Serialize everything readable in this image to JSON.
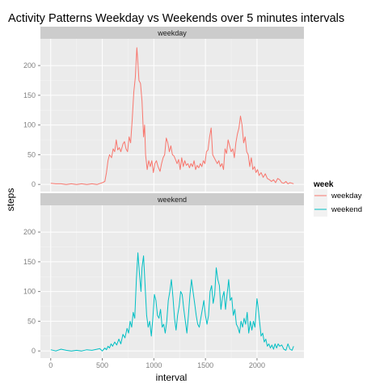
{
  "chart_data": {
    "type": "line",
    "title": "Activity Patterns Weekday vs Weekends over 5 minutes intervals",
    "xlabel": "interval",
    "ylabel": "steps",
    "xlim": [
      -100,
      2455
    ],
    "ylim": [
      -12,
      245
    ],
    "x_ticks": [
      0,
      500,
      1000,
      1500,
      2000
    ],
    "y_ticks": [
      0,
      50,
      100,
      150,
      200
    ],
    "grid": true,
    "legend": {
      "title": "week",
      "position": "right",
      "entries": [
        {
          "label": "weekday",
          "color": "#F8766D"
        },
        {
          "label": "weekend",
          "color": "#00BFC4"
        }
      ]
    },
    "panels": [
      {
        "label": "weekday",
        "color": "#F8766D",
        "points": [
          [
            0,
            2
          ],
          [
            50,
            1
          ],
          [
            100,
            1
          ],
          [
            150,
            0
          ],
          [
            200,
            1
          ],
          [
            250,
            0
          ],
          [
            300,
            1
          ],
          [
            350,
            0
          ],
          [
            400,
            1
          ],
          [
            450,
            0
          ],
          [
            500,
            3
          ],
          [
            525,
            5
          ],
          [
            540,
            20
          ],
          [
            555,
            40
          ],
          [
            570,
            50
          ],
          [
            590,
            45
          ],
          [
            605,
            60
          ],
          [
            620,
            55
          ],
          [
            635,
            75
          ],
          [
            650,
            58
          ],
          [
            665,
            62
          ],
          [
            680,
            55
          ],
          [
            700,
            68
          ],
          [
            715,
            72
          ],
          [
            730,
            60
          ],
          [
            745,
            55
          ],
          [
            760,
            80
          ],
          [
            775,
            70
          ],
          [
            790,
            110
          ],
          [
            805,
            155
          ],
          [
            820,
            180
          ],
          [
            835,
            230
          ],
          [
            845,
            205
          ],
          [
            855,
            175
          ],
          [
            870,
            170
          ],
          [
            885,
            140
          ],
          [
            900,
            80
          ],
          [
            910,
            100
          ],
          [
            920,
            50
          ],
          [
            935,
            25
          ],
          [
            950,
            40
          ],
          [
            965,
            30
          ],
          [
            980,
            40
          ],
          [
            995,
            20
          ],
          [
            1010,
            35
          ],
          [
            1025,
            40
          ],
          [
            1040,
            30
          ],
          [
            1060,
            22
          ],
          [
            1075,
            35
          ],
          [
            1090,
            45
          ],
          [
            1105,
            50
          ],
          [
            1120,
            78
          ],
          [
            1135,
            70
          ],
          [
            1150,
            55
          ],
          [
            1165,
            65
          ],
          [
            1180,
            50
          ],
          [
            1195,
            48
          ],
          [
            1210,
            42
          ],
          [
            1225,
            35
          ],
          [
            1240,
            42
          ],
          [
            1255,
            25
          ],
          [
            1270,
            45
          ],
          [
            1285,
            30
          ],
          [
            1300,
            40
          ],
          [
            1315,
            32
          ],
          [
            1330,
            35
          ],
          [
            1345,
            28
          ],
          [
            1360,
            35
          ],
          [
            1375,
            30
          ],
          [
            1390,
            40
          ],
          [
            1405,
            25
          ],
          [
            1420,
            32
          ],
          [
            1435,
            28
          ],
          [
            1450,
            35
          ],
          [
            1465,
            30
          ],
          [
            1480,
            40
          ],
          [
            1495,
            35
          ],
          [
            1510,
            55
          ],
          [
            1525,
            58
          ],
          [
            1540,
            80
          ],
          [
            1555,
            95
          ],
          [
            1570,
            50
          ],
          [
            1585,
            45
          ],
          [
            1600,
            40
          ],
          [
            1615,
            35
          ],
          [
            1630,
            40
          ],
          [
            1645,
            30
          ],
          [
            1660,
            35
          ],
          [
            1675,
            25
          ],
          [
            1690,
            60
          ],
          [
            1705,
            52
          ],
          [
            1720,
            75
          ],
          [
            1735,
            65
          ],
          [
            1750,
            55
          ],
          [
            1765,
            60
          ],
          [
            1780,
            45
          ],
          [
            1795,
            70
          ],
          [
            1810,
            85
          ],
          [
            1825,
            95
          ],
          [
            1840,
            115
          ],
          [
            1855,
            100
          ],
          [
            1870,
            70
          ],
          [
            1885,
            80
          ],
          [
            1900,
            55
          ],
          [
            1915,
            50
          ],
          [
            1930,
            30
          ],
          [
            1945,
            45
          ],
          [
            1960,
            25
          ],
          [
            1975,
            30
          ],
          [
            1990,
            20
          ],
          [
            2005,
            25
          ],
          [
            2020,
            15
          ],
          [
            2040,
            20
          ],
          [
            2060,
            12
          ],
          [
            2080,
            18
          ],
          [
            2100,
            10
          ],
          [
            2120,
            8
          ],
          [
            2140,
            5
          ],
          [
            2160,
            8
          ],
          [
            2180,
            3
          ],
          [
            2200,
            10
          ],
          [
            2220,
            8
          ],
          [
            2240,
            3
          ],
          [
            2260,
            2
          ],
          [
            2280,
            5
          ],
          [
            2300,
            1
          ],
          [
            2320,
            3
          ],
          [
            2340,
            2
          ],
          [
            2355,
            1
          ]
        ]
      },
      {
        "label": "weekend",
        "color": "#00BFC4",
        "points": [
          [
            0,
            2
          ],
          [
            50,
            0
          ],
          [
            100,
            3
          ],
          [
            150,
            1
          ],
          [
            200,
            0
          ],
          [
            250,
            1
          ],
          [
            300,
            0
          ],
          [
            350,
            2
          ],
          [
            400,
            1
          ],
          [
            450,
            3
          ],
          [
            475,
            4
          ],
          [
            500,
            0
          ],
          [
            525,
            5
          ],
          [
            540,
            2
          ],
          [
            555,
            8
          ],
          [
            570,
            5
          ],
          [
            585,
            12
          ],
          [
            600,
            8
          ],
          [
            620,
            15
          ],
          [
            640,
            10
          ],
          [
            660,
            20
          ],
          [
            680,
            12
          ],
          [
            700,
            28
          ],
          [
            720,
            22
          ],
          [
            740,
            38
          ],
          [
            755,
            30
          ],
          [
            770,
            50
          ],
          [
            785,
            40
          ],
          [
            800,
            65
          ],
          [
            815,
            55
          ],
          [
            830,
            120
          ],
          [
            845,
            165
          ],
          [
            860,
            130
          ],
          [
            875,
            100
          ],
          [
            885,
            140
          ],
          [
            900,
            160
          ],
          [
            915,
            110
          ],
          [
            930,
            60
          ],
          [
            945,
            40
          ],
          [
            960,
            50
          ],
          [
            975,
            25
          ],
          [
            990,
            55
          ],
          [
            1005,
            95
          ],
          [
            1020,
            85
          ],
          [
            1035,
            60
          ],
          [
            1050,
            55
          ],
          [
            1065,
            70
          ],
          [
            1080,
            40
          ],
          [
            1095,
            45
          ],
          [
            1110,
            30
          ],
          [
            1125,
            50
          ],
          [
            1140,
            85
          ],
          [
            1155,
            100
          ],
          [
            1170,
            120
          ],
          [
            1185,
            90
          ],
          [
            1200,
            55
          ],
          [
            1215,
            35
          ],
          [
            1230,
            60
          ],
          [
            1245,
            75
          ],
          [
            1260,
            100
          ],
          [
            1275,
            95
          ],
          [
            1290,
            70
          ],
          [
            1305,
            50
          ],
          [
            1320,
            30
          ],
          [
            1335,
            60
          ],
          [
            1350,
            95
          ],
          [
            1365,
            120
          ],
          [
            1380,
            100
          ],
          [
            1395,
            80
          ],
          [
            1410,
            60
          ],
          [
            1425,
            45
          ],
          [
            1440,
            40
          ],
          [
            1455,
            55
          ],
          [
            1470,
            70
          ],
          [
            1485,
            85
          ],
          [
            1500,
            60
          ],
          [
            1515,
            45
          ],
          [
            1530,
            60
          ],
          [
            1545,
            100
          ],
          [
            1560,
            110
          ],
          [
            1575,
            80
          ],
          [
            1590,
            95
          ],
          [
            1605,
            140
          ],
          [
            1620,
            120
          ],
          [
            1635,
            110
          ],
          [
            1650,
            70
          ],
          [
            1665,
            90
          ],
          [
            1680,
            100
          ],
          [
            1695,
            70
          ],
          [
            1710,
            95
          ],
          [
            1725,
            120
          ],
          [
            1740,
            85
          ],
          [
            1755,
            90
          ],
          [
            1770,
            60
          ],
          [
            1785,
            70
          ],
          [
            1800,
            45
          ],
          [
            1815,
            40
          ],
          [
            1830,
            30
          ],
          [
            1845,
            50
          ],
          [
            1860,
            40
          ],
          [
            1875,
            55
          ],
          [
            1890,
            45
          ],
          [
            1905,
            65
          ],
          [
            1920,
            30
          ],
          [
            1935,
            50
          ],
          [
            1950,
            35
          ],
          [
            1965,
            50
          ],
          [
            1980,
            40
          ],
          [
            2000,
            88
          ],
          [
            2010,
            75
          ],
          [
            2025,
            50
          ],
          [
            2040,
            25
          ],
          [
            2055,
            30
          ],
          [
            2070,
            15
          ],
          [
            2085,
            20
          ],
          [
            2100,
            8
          ],
          [
            2115,
            12
          ],
          [
            2130,
            5
          ],
          [
            2145,
            10
          ],
          [
            2160,
            3
          ],
          [
            2175,
            12
          ],
          [
            2190,
            5
          ],
          [
            2205,
            12
          ],
          [
            2220,
            8
          ],
          [
            2240,
            10
          ],
          [
            2260,
            3
          ],
          [
            2280,
            1
          ],
          [
            2300,
            12
          ],
          [
            2320,
            3
          ],
          [
            2340,
            1
          ],
          [
            2355,
            8
          ]
        ]
      }
    ]
  }
}
